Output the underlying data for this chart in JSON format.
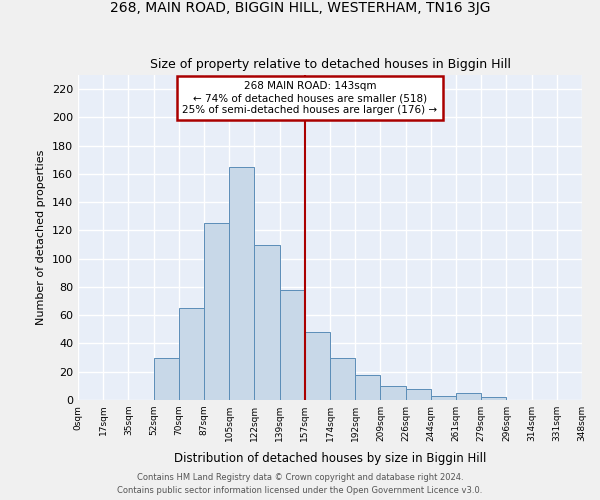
{
  "title": "268, MAIN ROAD, BIGGIN HILL, WESTERHAM, TN16 3JG",
  "subtitle": "Size of property relative to detached houses in Biggin Hill",
  "xlabel": "Distribution of detached houses by size in Biggin Hill",
  "ylabel": "Number of detached properties",
  "bin_labels": [
    "0sqm",
    "17sqm",
    "35sqm",
    "52sqm",
    "70sqm",
    "87sqm",
    "105sqm",
    "122sqm",
    "139sqm",
    "157sqm",
    "174sqm",
    "192sqm",
    "209sqm",
    "226sqm",
    "244sqm",
    "261sqm",
    "279sqm",
    "296sqm",
    "314sqm",
    "331sqm",
    "348sqm"
  ],
  "bar_values": [
    0,
    0,
    0,
    30,
    65,
    125,
    165,
    110,
    78,
    48,
    30,
    18,
    10,
    8,
    3,
    5,
    2,
    0,
    0,
    0
  ],
  "bar_color": "#c8d8e8",
  "bar_edge_color": "#5b8db8",
  "property_line_x": 8.5,
  "property_line_color": "#aa0000",
  "annotation_box_color": "#aa0000",
  "annotation_lines": [
    "268 MAIN ROAD: 143sqm",
    "← 74% of detached houses are smaller (518)",
    "25% of semi-detached houses are larger (176) →"
  ],
  "ylim": [
    0,
    230
  ],
  "yticks": [
    0,
    20,
    40,
    60,
    80,
    100,
    120,
    140,
    160,
    180,
    200,
    220
  ],
  "background_color": "#e8eef8",
  "grid_color": "#ffffff",
  "footer_line1": "Contains HM Land Registry data © Crown copyright and database right 2024.",
  "footer_line2": "Contains public sector information licensed under the Open Government Licence v3.0."
}
